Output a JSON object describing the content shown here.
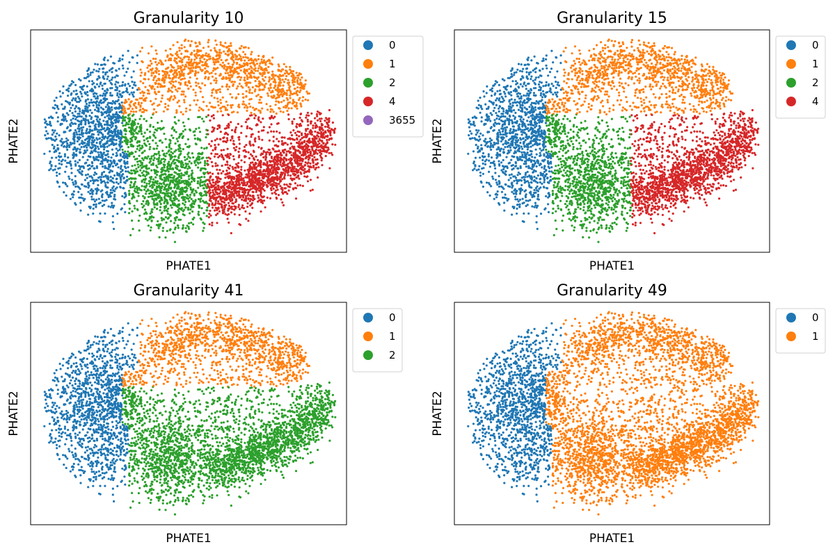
{
  "chart_data": [
    {
      "type": "scatter",
      "title": "Granularity 10",
      "xlabel": "PHATE1",
      "ylabel": "PHATE2",
      "grid": false,
      "ticks": false,
      "legend_placement": "outside-upper-right",
      "series": [
        {
          "name": "0",
          "color": "#1f77b4"
        },
        {
          "name": "1",
          "color": "#ff7f0e"
        },
        {
          "name": "2",
          "color": "#2ca02c"
        },
        {
          "name": "4",
          "color": "#d62728"
        },
        {
          "name": "3655",
          "color": "#9467bd"
        }
      ]
    },
    {
      "type": "scatter",
      "title": "Granularity 15",
      "xlabel": "PHATE1",
      "ylabel": "PHATE2",
      "grid": false,
      "ticks": false,
      "legend_placement": "outside-upper-right",
      "series": [
        {
          "name": "0",
          "color": "#1f77b4"
        },
        {
          "name": "1",
          "color": "#ff7f0e"
        },
        {
          "name": "2",
          "color": "#2ca02c"
        },
        {
          "name": "4",
          "color": "#d62728"
        }
      ]
    },
    {
      "type": "scatter",
      "title": "Granularity 41",
      "xlabel": "PHATE1",
      "ylabel": "PHATE2",
      "grid": false,
      "ticks": false,
      "legend_placement": "outside-upper-right",
      "series": [
        {
          "name": "0",
          "color": "#1f77b4"
        },
        {
          "name": "1",
          "color": "#ff7f0e"
        },
        {
          "name": "2",
          "color": "#2ca02c"
        }
      ]
    },
    {
      "type": "scatter",
      "title": "Granularity 49",
      "xlabel": "PHATE1",
      "ylabel": "PHATE2",
      "grid": false,
      "ticks": false,
      "legend_placement": "outside-upper-right",
      "series": [
        {
          "name": "0",
          "color": "#1f77b4"
        },
        {
          "name": "1",
          "color": "#ff7f0e"
        }
      ]
    }
  ]
}
